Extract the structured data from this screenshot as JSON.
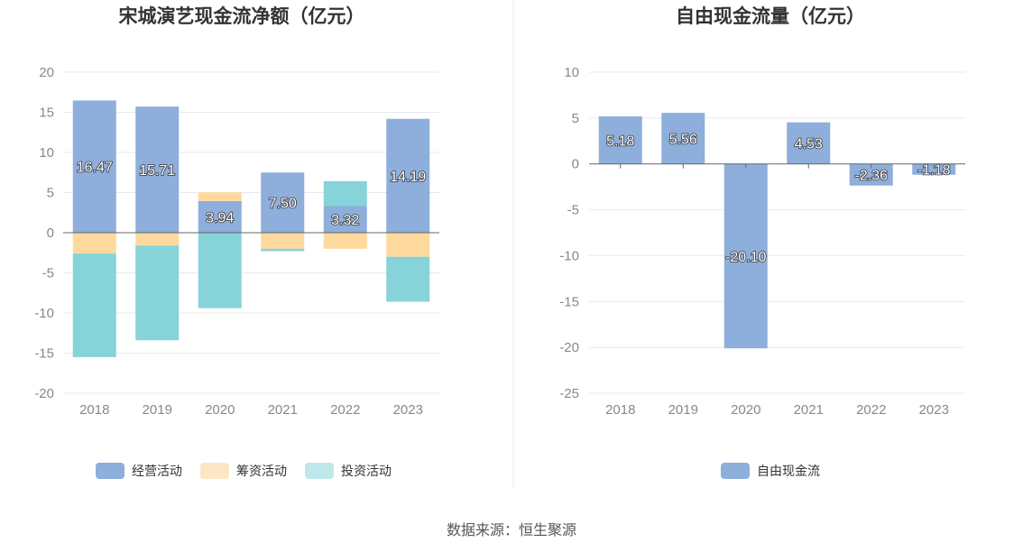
{
  "chart_data": [
    {
      "type": "bar",
      "stacked": true,
      "title": "宋城演艺现金流净额（亿元）",
      "categories": [
        "2018",
        "2019",
        "2020",
        "2021",
        "2022",
        "2023"
      ],
      "ylim": [
        -20,
        20
      ],
      "yticks": [
        "20",
        "15",
        "10",
        "5",
        "0",
        "-5",
        "-10",
        "-15",
        "-20"
      ],
      "grid": true,
      "legend": "bottom",
      "series": [
        {
          "name": "经营活动",
          "color": "#8eaedb",
          "values": [
            16.47,
            15.71,
            3.94,
            7.5,
            3.32,
            14.19
          ],
          "labels": [
            "16.47",
            "15.71",
            "3.94",
            "7.50",
            "3.32",
            "14.19"
          ]
        },
        {
          "name": "筹资活动",
          "color": "#fdd99d",
          "values": [
            -2.6,
            -1.6,
            1.1,
            -2.0,
            -2.0,
            -3.0
          ]
        },
        {
          "name": "投资活动",
          "color": "#86d4d9",
          "values": [
            -12.9,
            -11.8,
            -9.4,
            -0.3,
            3.1,
            -5.6
          ]
        }
      ],
      "legend_colors": [
        "#8eaedb",
        "#fde6c3",
        "#bfe7ea"
      ]
    },
    {
      "type": "bar",
      "title": "自由现金流量（亿元）",
      "categories": [
        "2018",
        "2019",
        "2020",
        "2021",
        "2022",
        "2023"
      ],
      "ylim": [
        -25,
        10
      ],
      "yticks": [
        "10",
        "5",
        "0",
        "-5",
        "-10",
        "-15",
        "-20",
        "-25"
      ],
      "grid": true,
      "legend": "bottom",
      "series": [
        {
          "name": "自由现金流",
          "color": "#8eaedb",
          "values": [
            5.18,
            5.56,
            -20.1,
            4.53,
            -2.36,
            -1.18
          ],
          "labels": [
            "5.18",
            "5.56",
            "-20.10",
            "4.53",
            "-2.36",
            "-1.18"
          ]
        }
      ]
    }
  ],
  "source": "数据来源：恒生聚源"
}
